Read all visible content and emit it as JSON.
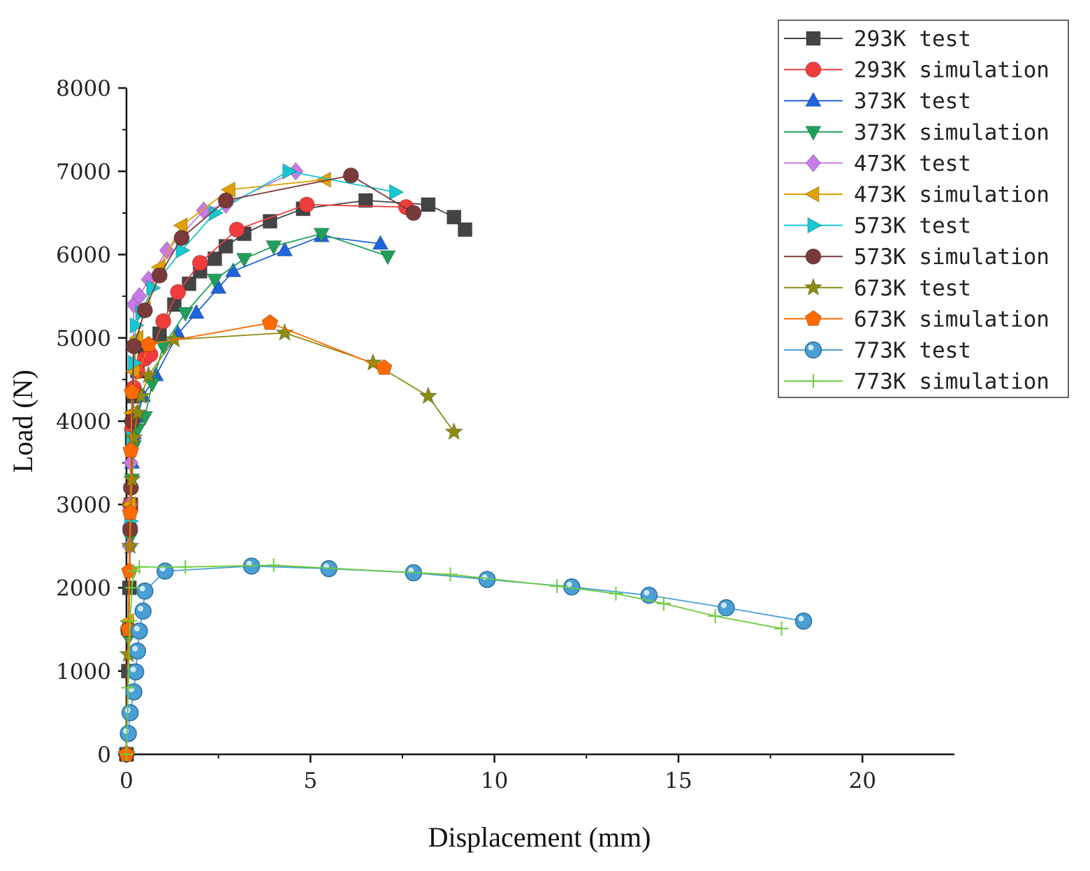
{
  "chart_data": {
    "type": "line",
    "xlabel": "Displacement (mm)",
    "ylabel": "Load (N)",
    "xlim": [
      0,
      22.5
    ],
    "ylim": [
      0,
      8000
    ],
    "xticks": [
      0,
      5,
      10,
      15,
      20
    ],
    "yticks": [
      0,
      1000,
      2000,
      3000,
      4000,
      5000,
      6000,
      7000,
      8000
    ],
    "grid": false,
    "legend_position": "top-right",
    "series": [
      {
        "name": "293K test",
        "color": "#444444",
        "marker": "square",
        "x": [
          0,
          0.05,
          0.08,
          0.12,
          0.15,
          0.2,
          0.3,
          0.5,
          0.9,
          1.3,
          1.7,
          2.0,
          2.4,
          2.7,
          3.2,
          3.9,
          4.8,
          6.5,
          8.2,
          8.9,
          9.2
        ],
        "y": [
          0,
          1000,
          2000,
          3000,
          3800,
          4300,
          4600,
          4800,
          5050,
          5400,
          5650,
          5800,
          5950,
          6100,
          6250,
          6400,
          6550,
          6650,
          6600,
          6450,
          6300
        ]
      },
      {
        "name": "293K simulation",
        "color": "#f03c3c",
        "marker": "circle",
        "x": [
          0,
          0.05,
          0.1,
          0.15,
          0.2,
          0.3,
          0.5,
          0.65,
          1.0,
          1.4,
          2.0,
          3.0,
          4.9,
          7.6
        ],
        "y": [
          0,
          1500,
          3000,
          3900,
          4400,
          4600,
          4750,
          4800,
          5200,
          5550,
          5900,
          6300,
          6600,
          6570
        ]
      },
      {
        "name": "373K test",
        "color": "#1e64dc",
        "marker": "triangle-up",
        "x": [
          0,
          0.05,
          0.1,
          0.15,
          0.2,
          0.3,
          0.45,
          0.8,
          1.4,
          1.9,
          2.5,
          2.9,
          4.3,
          5.3,
          6.9
        ],
        "y": [
          0,
          1500,
          2800,
          3500,
          3850,
          4050,
          4300,
          4550,
          5050,
          5300,
          5600,
          5800,
          6050,
          6220,
          6130
        ]
      },
      {
        "name": "373K simulation",
        "color": "#1fa05a",
        "marker": "triangle-down",
        "x": [
          0,
          0.05,
          0.1,
          0.15,
          0.2,
          0.3,
          0.5,
          0.7,
          1.0,
          1.6,
          2.4,
          3.2,
          4.0,
          5.3,
          7.1
        ],
        "y": [
          0,
          1400,
          2600,
          3300,
          3700,
          3900,
          4050,
          4450,
          4900,
          5300,
          5700,
          5950,
          6100,
          6250,
          5980
        ]
      },
      {
        "name": "473K test",
        "color": "#c87ae6",
        "marker": "diamond",
        "x": [
          0,
          0.05,
          0.08,
          0.1,
          0.12,
          0.15,
          0.2,
          0.35,
          0.6,
          1.1,
          2.1,
          2.7,
          4.6
        ],
        "y": [
          0,
          1500,
          2500,
          3000,
          3500,
          4000,
          5400,
          5500,
          5700,
          6050,
          6530,
          6600,
          7000
        ]
      },
      {
        "name": "473K simulation",
        "color": "#e0a000",
        "marker": "triangle-left",
        "x": [
          0,
          0.05,
          0.1,
          0.15,
          0.2,
          0.3,
          0.5,
          0.9,
          1.5,
          2.8,
          5.4
        ],
        "y": [
          0,
          1600,
          3000,
          4100,
          4600,
          5000,
          5350,
          5850,
          6350,
          6780,
          6900
        ]
      },
      {
        "name": "573K test",
        "color": "#14c8d2",
        "marker": "triangle-right",
        "x": [
          0,
          0.05,
          0.1,
          0.15,
          0.2,
          0.25,
          0.4,
          0.7,
          1.5,
          2.4,
          4.4,
          7.3
        ],
        "y": [
          0,
          1500,
          2800,
          3800,
          4700,
          5150,
          5300,
          5600,
          6050,
          6500,
          7000,
          6750
        ]
      },
      {
        "name": "573K simulation",
        "color": "#7a3a3a",
        "marker": "circle",
        "x": [
          0,
          0.05,
          0.1,
          0.12,
          0.15,
          0.2,
          0.5,
          0.9,
          1.5,
          2.7,
          6.1,
          7.8
        ],
        "y": [
          0,
          1500,
          2700,
          3200,
          4000,
          4900,
          5330,
          5750,
          6200,
          6650,
          6950,
          6500
        ]
      },
      {
        "name": "673K test",
        "color": "#8c8c14",
        "marker": "star",
        "x": [
          0,
          0.05,
          0.1,
          0.15,
          0.2,
          0.3,
          0.4,
          0.6,
          1.3,
          4.3,
          6.7,
          8.2,
          8.9
        ],
        "y": [
          0,
          1200,
          2500,
          3300,
          3800,
          4100,
          4300,
          4550,
          4980,
          5060,
          4700,
          4300,
          3870
        ]
      },
      {
        "name": "673K simulation",
        "color": "#ff6a00",
        "marker": "pentagon",
        "x": [
          0,
          0.05,
          0.08,
          0.1,
          0.12,
          0.15,
          0.6,
          3.9,
          7.0
        ],
        "y": [
          0,
          1500,
          2200,
          2900,
          3650,
          4350,
          4920,
          5180,
          4640
        ]
      },
      {
        "name": "773K test",
        "color": "#4a9fd5",
        "marker": "sphere",
        "x": [
          0.05,
          0.1,
          0.2,
          0.25,
          0.3,
          0.35,
          0.45,
          0.5,
          1.05,
          3.4,
          5.5,
          7.8,
          9.8,
          12.1,
          14.2,
          16.3,
          18.4
        ],
        "y": [
          250,
          500,
          750,
          990,
          1240,
          1480,
          1720,
          1960,
          2200,
          2260,
          2230,
          2180,
          2100,
          2010,
          1910,
          1760,
          1600
        ]
      },
      {
        "name": "773K simulation",
        "color": "#6acc3c",
        "marker": "plus",
        "x": [
          0,
          0.05,
          0.1,
          0.15,
          0.2,
          0.35,
          1.6,
          4.0,
          8.8,
          11.7,
          13.3,
          14.6,
          16.0,
          17.8
        ],
        "y": [
          0,
          800,
          1600,
          2000,
          2200,
          2250,
          2250,
          2270,
          2160,
          2020,
          1930,
          1810,
          1660,
          1510
        ]
      }
    ]
  }
}
